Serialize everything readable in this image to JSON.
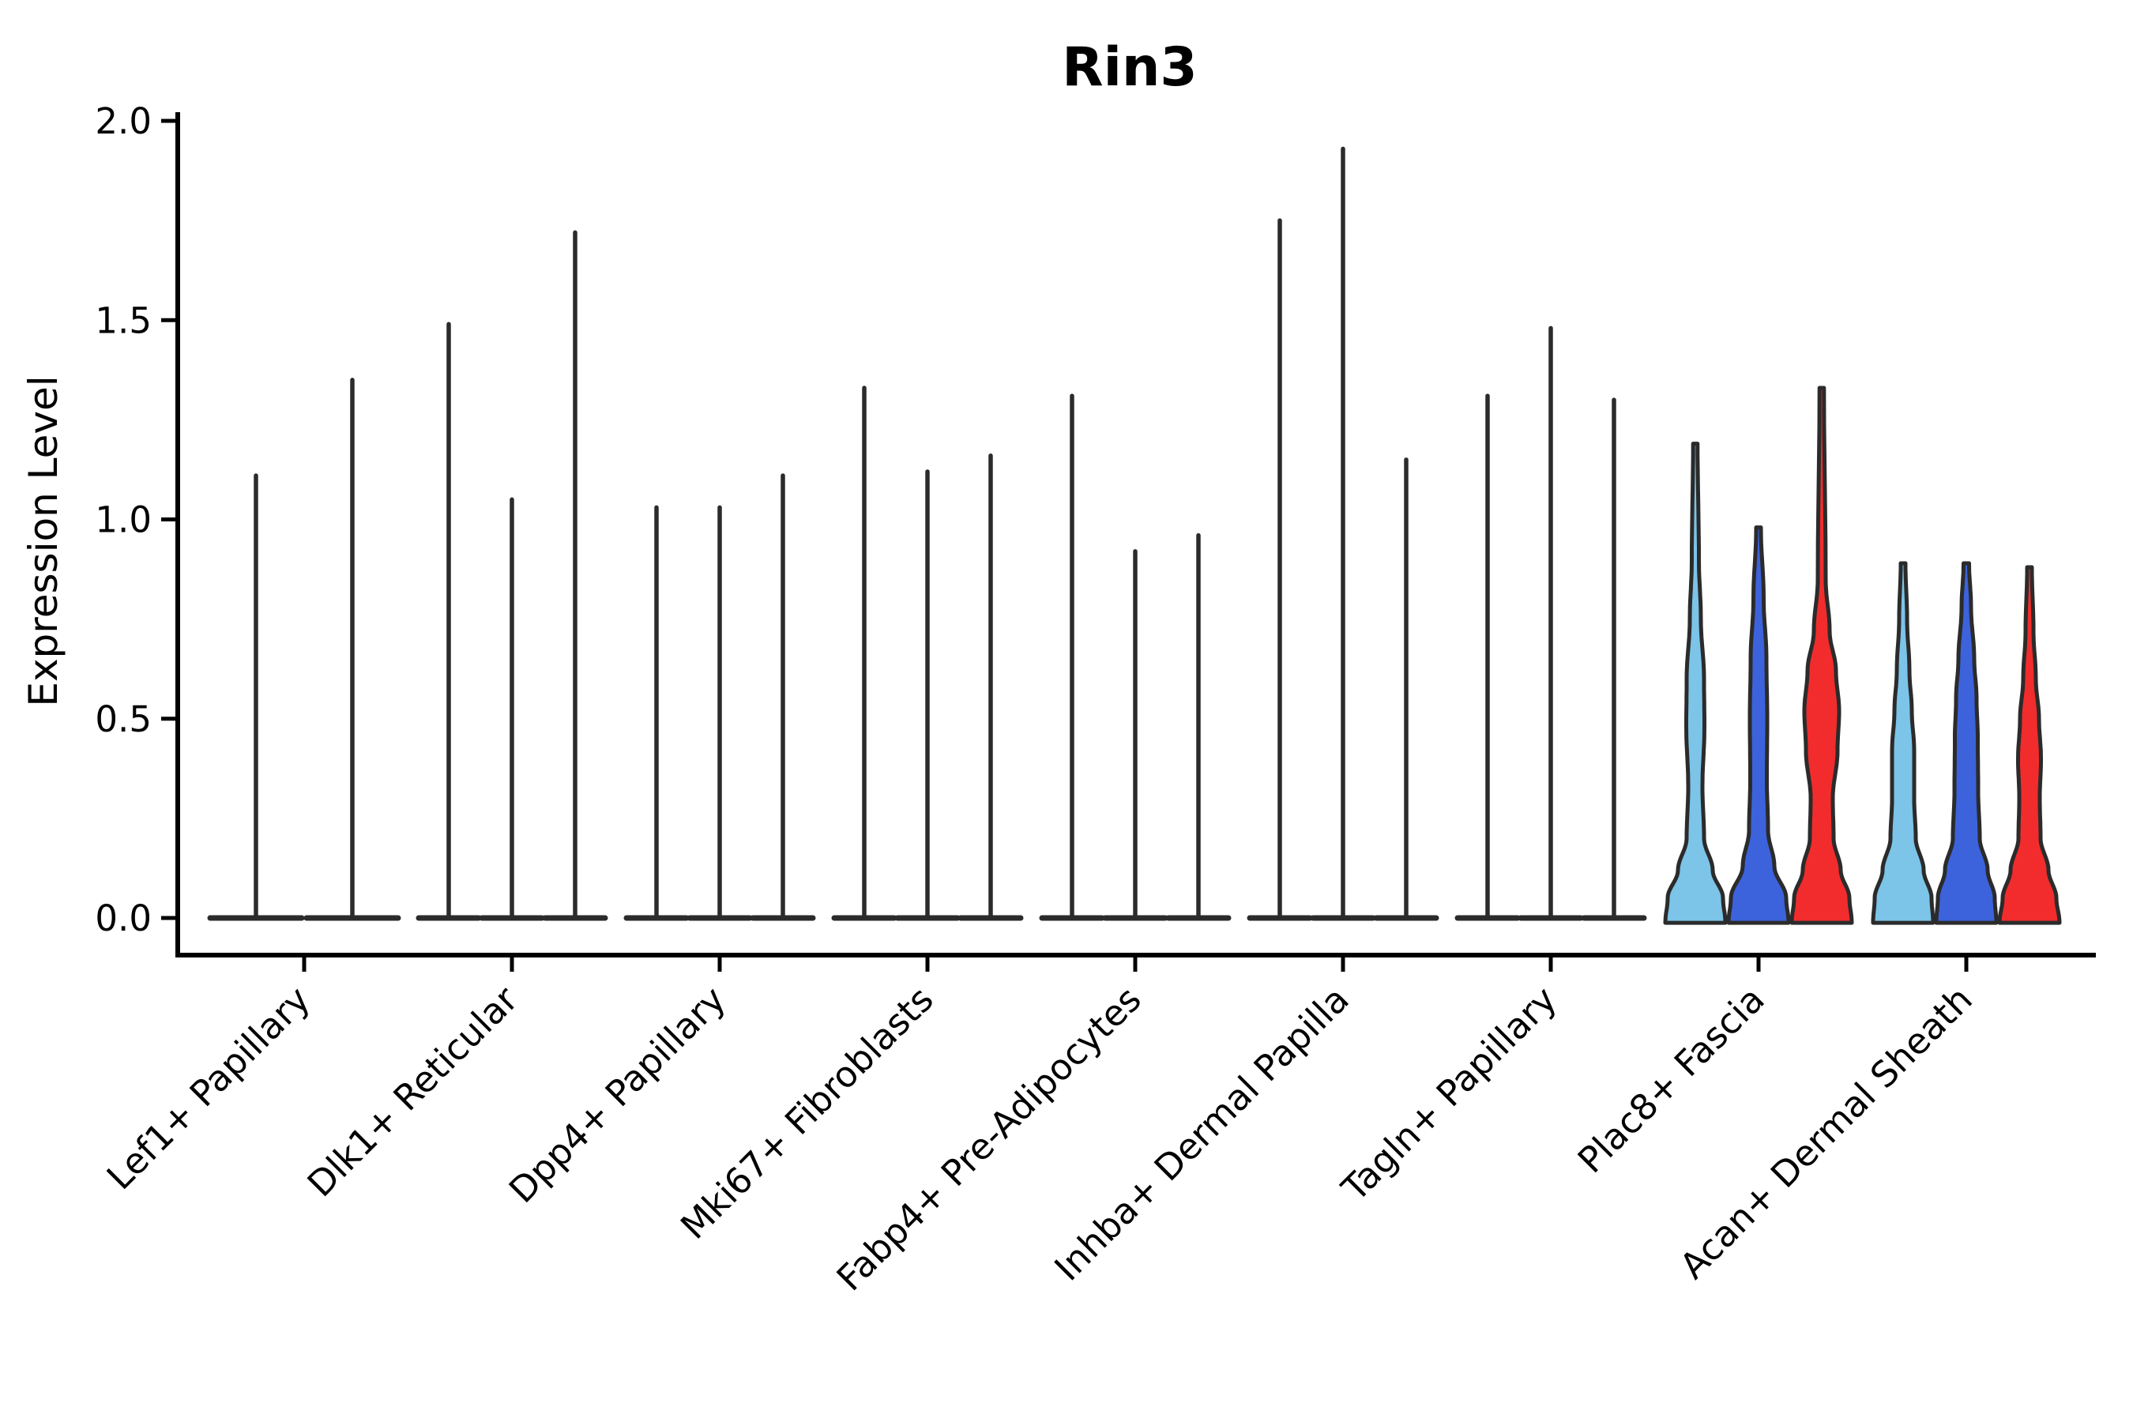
{
  "title": "Rin3",
  "chart_data": {
    "type": "violin",
    "title": "Rin3",
    "ylabel": "Expression Level",
    "xlabel": "",
    "ylim": [
      0.0,
      2.0
    ],
    "grid": false,
    "legend": "none",
    "y_axis": {
      "label": "Expression Level",
      "ticks": [
        {
          "value": 0.0,
          "label": "0.0"
        },
        {
          "value": 0.5,
          "label": "0.5"
        },
        {
          "value": 1.0,
          "label": "1.0"
        },
        {
          "value": 1.5,
          "label": "1.5"
        },
        {
          "value": 2.0,
          "label": "2.0"
        }
      ]
    },
    "categories": [
      "Lef1+ Papillary",
      "Dlk1+ Reticular",
      "Dpp4+ Papillary",
      "Mki67+ Fibroblasts",
      "Fabp4+ Pre-Adipocytes",
      "Inhba+ Dermal Papilla",
      "Tagln+ Papillary",
      "Plac8+ Fascia",
      "Acan+ Dermal Sheath"
    ],
    "palette": {
      "light_blue": "#7CC4E8",
      "dark_blue": "#3C63DC",
      "red": "#F22C2C",
      "outline": "#2b2b2b",
      "axis": "#000000"
    },
    "groups": [
      {
        "category": "Lef1+ Papillary",
        "violins": [
          {
            "type": "spike",
            "max": 1.11
          },
          {
            "type": "spike",
            "max": 1.35
          }
        ]
      },
      {
        "category": "Dlk1+ Reticular",
        "violins": [
          {
            "type": "spike",
            "max": 1.49
          },
          {
            "type": "spike",
            "max": 1.05
          },
          {
            "type": "spike",
            "max": 1.72
          }
        ]
      },
      {
        "category": "Dpp4+ Papillary",
        "violins": [
          {
            "type": "spike",
            "max": 1.03
          },
          {
            "type": "spike",
            "max": 1.03
          },
          {
            "type": "spike",
            "max": 1.11
          }
        ]
      },
      {
        "category": "Mki67+ Fibroblasts",
        "violins": [
          {
            "type": "spike",
            "max": 1.33
          },
          {
            "type": "spike",
            "max": 1.12
          },
          {
            "type": "spike",
            "max": 1.16
          }
        ]
      },
      {
        "category": "Fabp4+ Pre-Adipocytes",
        "violins": [
          {
            "type": "spike",
            "max": 1.31
          },
          {
            "type": "spike",
            "max": 0.92
          },
          {
            "type": "spike",
            "max": 0.96
          }
        ]
      },
      {
        "category": "Inhba+ Dermal Papilla",
        "violins": [
          {
            "type": "spike",
            "max": 1.75
          },
          {
            "type": "spike",
            "max": 1.93
          },
          {
            "type": "spike",
            "max": 1.15
          }
        ]
      },
      {
        "category": "Tagln+ Papillary",
        "violins": [
          {
            "type": "spike",
            "max": 1.31
          },
          {
            "type": "spike",
            "max": 1.48
          },
          {
            "type": "spike",
            "max": 1.3
          }
        ]
      },
      {
        "category": "Plac8+ Fascia",
        "violins": [
          {
            "type": "violin",
            "max": 1.19,
            "color": "light_blue",
            "profile": [
              [
                -0.012,
                38
              ],
              [
                0.05,
                35
              ],
              [
                0.12,
                22
              ],
              [
                0.2,
                11
              ],
              [
                0.33,
                9
              ],
              [
                0.48,
                11.5
              ],
              [
                0.6,
                11
              ],
              [
                0.75,
                7
              ],
              [
                0.9,
                4.5
              ],
              [
                1.19,
                2.8
              ]
            ]
          },
          {
            "type": "violin",
            "max": 0.98,
            "color": "dark_blue",
            "profile": [
              [
                -0.012,
                38
              ],
              [
                0.05,
                35
              ],
              [
                0.13,
                20
              ],
              [
                0.22,
                12
              ],
              [
                0.35,
                10.5
              ],
              [
                0.5,
                11
              ],
              [
                0.65,
                10
              ],
              [
                0.8,
                6.5
              ],
              [
                0.98,
                3
              ]
            ]
          },
          {
            "type": "violin",
            "max": 1.33,
            "color": "red",
            "profile": [
              [
                -0.012,
                38
              ],
              [
                0.05,
                35
              ],
              [
                0.12,
                24
              ],
              [
                0.2,
                15
              ],
              [
                0.3,
                14
              ],
              [
                0.42,
                20
              ],
              [
                0.52,
                22
              ],
              [
                0.62,
                18
              ],
              [
                0.72,
                10
              ],
              [
                0.85,
                5
              ],
              [
                1.33,
                2.8
              ]
            ]
          }
        ]
      },
      {
        "category": "Acan+ Dermal Sheath",
        "violins": [
          {
            "type": "violin",
            "max": 0.89,
            "color": "light_blue",
            "profile": [
              [
                -0.012,
                38
              ],
              [
                0.05,
                36
              ],
              [
                0.12,
                26
              ],
              [
                0.2,
                16
              ],
              [
                0.3,
                14
              ],
              [
                0.42,
                14
              ],
              [
                0.52,
                11
              ],
              [
                0.62,
                8
              ],
              [
                0.75,
                5
              ],
              [
                0.89,
                3
              ]
            ]
          },
          {
            "type": "violin",
            "max": 0.89,
            "color": "dark_blue",
            "profile": [
              [
                -0.012,
                38
              ],
              [
                0.05,
                36
              ],
              [
                0.12,
                27
              ],
              [
                0.2,
                17
              ],
              [
                0.32,
                15
              ],
              [
                0.45,
                14.5
              ],
              [
                0.55,
                13
              ],
              [
                0.65,
                10
              ],
              [
                0.78,
                6
              ],
              [
                0.89,
                3.5
              ]
            ]
          },
          {
            "type": "violin",
            "max": 0.88,
            "color": "red",
            "profile": [
              [
                -0.012,
                38
              ],
              [
                0.05,
                34
              ],
              [
                0.12,
                24
              ],
              [
                0.2,
                14
              ],
              [
                0.3,
                13
              ],
              [
                0.4,
                14.5
              ],
              [
                0.5,
                12
              ],
              [
                0.6,
                8
              ],
              [
                0.72,
                5
              ],
              [
                0.88,
                3
              ]
            ]
          }
        ]
      }
    ]
  }
}
